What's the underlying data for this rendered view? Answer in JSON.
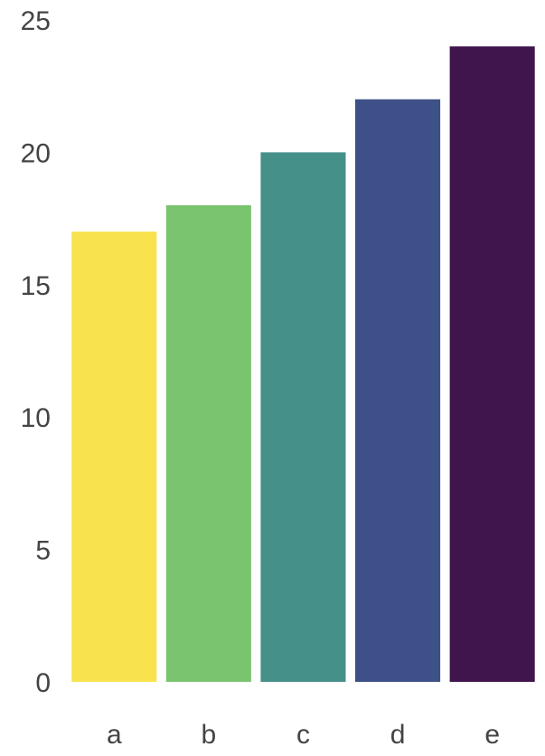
{
  "chart_data": {
    "type": "bar",
    "categories": [
      "a",
      "b",
      "c",
      "d",
      "e"
    ],
    "values": [
      17,
      18,
      20,
      22,
      24
    ],
    "colors": [
      "#f8e24d",
      "#7ac46f",
      "#46908a",
      "#3d5188",
      "#40154d"
    ],
    "title": "",
    "xlabel": "",
    "ylabel": "",
    "ylim": [
      0,
      25
    ],
    "yticks": [
      0,
      5,
      10,
      15,
      20,
      25
    ],
    "grid": false,
    "legend": "none"
  }
}
